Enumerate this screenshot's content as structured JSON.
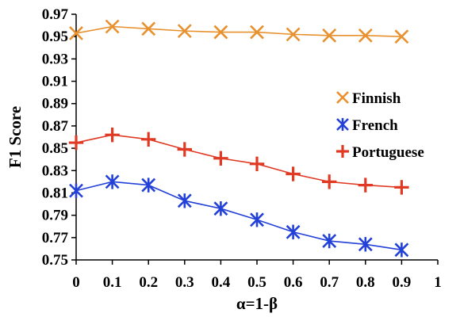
{
  "chart_data": {
    "type": "line",
    "title": "",
    "xlabel": "α=1-β",
    "ylabel": "F1 Score",
    "xlim": [
      0,
      1
    ],
    "ylim": [
      0.75,
      0.97
    ],
    "x_ticks": [
      "0",
      "0.1",
      "0.2",
      "0.3",
      "0.4",
      "0.5",
      "0.6",
      "0.7",
      "0.8",
      "0.9",
      "1"
    ],
    "y_ticks": [
      "0.75",
      "0.77",
      "0.79",
      "0.81",
      "0.83",
      "0.85",
      "0.87",
      "0.89",
      "0.91",
      "0.93",
      "0.95",
      "0.97"
    ],
    "grid": false,
    "legend_position": "right",
    "x": [
      0,
      0.1,
      0.2,
      0.3,
      0.4,
      0.5,
      0.6,
      0.7,
      0.8,
      0.9
    ],
    "series": [
      {
        "name": "Finnish",
        "marker": "x",
        "color": "#E8912F",
        "values": [
          0.953,
          0.959,
          0.957,
          0.955,
          0.954,
          0.954,
          0.952,
          0.951,
          0.951,
          0.95
        ]
      },
      {
        "name": "French",
        "marker": "asterisk",
        "color": "#2341D8",
        "values": [
          0.812,
          0.82,
          0.817,
          0.803,
          0.796,
          0.786,
          0.775,
          0.767,
          0.764,
          0.759
        ]
      },
      {
        "name": "Portuguese",
        "marker": "plus",
        "color": "#E03A25",
        "values": [
          0.855,
          0.862,
          0.858,
          0.849,
          0.841,
          0.836,
          0.827,
          0.82,
          0.817,
          0.815
        ]
      }
    ]
  }
}
